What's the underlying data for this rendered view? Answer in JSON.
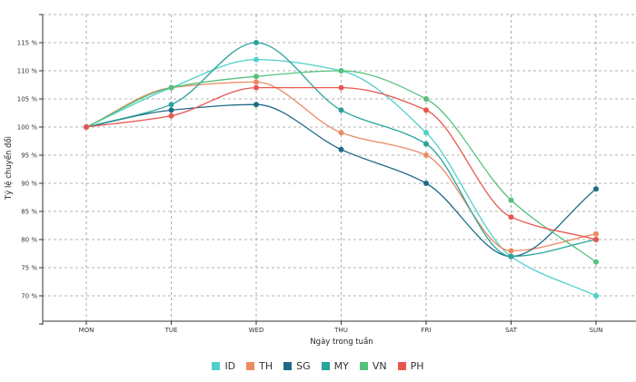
{
  "chart_data": {
    "type": "line",
    "title": "",
    "xlabel": "Ngày trong tuần",
    "ylabel": "Tỷ lệ chuyển đổi",
    "categories": [
      "MON",
      "TUE",
      "WED",
      "THU",
      "FRI",
      "SAT",
      "SUN"
    ],
    "yticks": [
      70,
      75,
      80,
      85,
      90,
      95,
      100,
      105,
      110,
      115
    ],
    "ytick_labels": [
      "70 %",
      "75 %",
      "80 %",
      "85 %",
      "90 %",
      "95 %",
      "100 %",
      "105 %",
      "110 %",
      "115 %"
    ],
    "ylim": [
      65,
      120
    ],
    "grid": true,
    "legend_position": "bottom",
    "series": [
      {
        "name": "ID",
        "color": "#4fd0cb",
        "values": [
          100,
          107,
          112,
          110,
          99,
          77,
          70
        ]
      },
      {
        "name": "TH",
        "color": "#ec8a63",
        "values": [
          100,
          107,
          108,
          99,
          95,
          78,
          81
        ]
      },
      {
        "name": "SG",
        "color": "#1f6b86",
        "values": [
          100,
          103,
          104,
          96,
          90,
          77,
          89
        ]
      },
      {
        "name": "MY",
        "color": "#2aa39b",
        "values": [
          100,
          104,
          115,
          103,
          97,
          77,
          80
        ]
      },
      {
        "name": "VN",
        "color": "#55c17c",
        "values": [
          100,
          107,
          109,
          110,
          105,
          87,
          76
        ]
      },
      {
        "name": "PH",
        "color": "#e9564f",
        "values": [
          100,
          102,
          107,
          107,
          103,
          84,
          80
        ]
      }
    ]
  }
}
